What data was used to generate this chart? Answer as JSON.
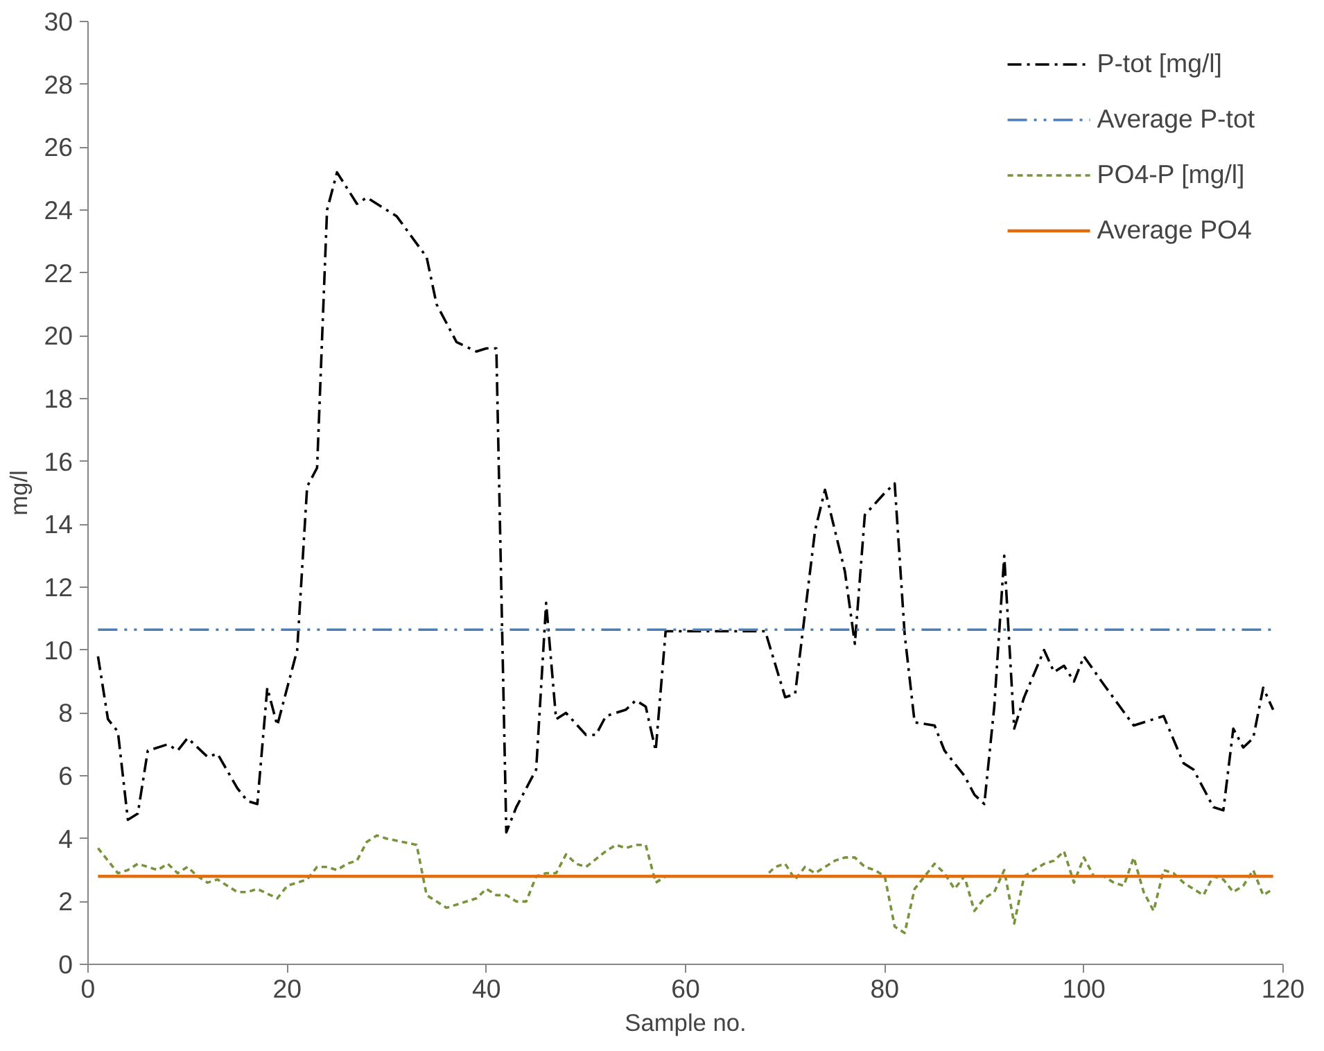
{
  "chart_data": {
    "type": "line",
    "xlabel": "Sample no.",
    "ylabel": "mg/l",
    "xlim": [
      0,
      120
    ],
    "xticks": [
      0,
      20,
      40,
      60,
      80,
      100,
      120
    ],
    "ylim": [
      0,
      30
    ],
    "yticks": [
      0,
      2,
      4,
      6,
      8,
      10,
      12,
      14,
      16,
      18,
      20,
      22,
      24,
      26,
      28,
      30
    ],
    "grid": false,
    "legend": "top right",
    "marker": "none",
    "series": [
      {
        "name": "P-tot [mg/l]",
        "color": "#000000",
        "line_style": "dashdot",
        "x": [
          1,
          2,
          3,
          4,
          5,
          6,
          8,
          9,
          10,
          12,
          13,
          15,
          16,
          17,
          18,
          19,
          21,
          22,
          23,
          24,
          25,
          27,
          28,
          31,
          34,
          35,
          37,
          39,
          40,
          41,
          42,
          43,
          45,
          46,
          47,
          48,
          50,
          51,
          52,
          54,
          55,
          56,
          57,
          58,
          68,
          70,
          71,
          73,
          74,
          76,
          77,
          78,
          80,
          81,
          82,
          83,
          85,
          86,
          88,
          89,
          90,
          91,
          92,
          93,
          94,
          96,
          97,
          98,
          99,
          100,
          102,
          105,
          107,
          108,
          110,
          111,
          113,
          114,
          115,
          116,
          117,
          118,
          119
        ],
        "values": [
          9.8,
          7.8,
          7.4,
          4.6,
          4.8,
          6.8,
          7.0,
          6.8,
          7.2,
          6.6,
          6.7,
          5.6,
          5.2,
          5.1,
          8.8,
          7.6,
          10.0,
          15.2,
          15.8,
          24.0,
          25.2,
          24.2,
          24.4,
          23.8,
          22.5,
          21.0,
          19.8,
          19.5,
          19.6,
          19.6,
          4.2,
          5.0,
          6.2,
          11.5,
          7.8,
          8.0,
          7.3,
          7.3,
          7.9,
          8.1,
          8.4,
          8.2,
          6.8,
          10.6,
          10.6,
          8.5,
          8.6,
          13.8,
          15.1,
          12.5,
          10.2,
          14.3,
          15.0,
          15.3,
          10.5,
          7.7,
          7.6,
          6.8,
          6.0,
          5.4,
          5.1,
          8.2,
          13.0,
          7.5,
          8.5,
          10.0,
          9.3,
          9.5,
          9.0,
          9.8,
          8.9,
          7.6,
          7.8,
          7.9,
          6.4,
          6.2,
          5.0,
          4.9,
          7.5,
          6.9,
          7.2,
          8.8,
          8.1
        ]
      },
      {
        "name": "Average P-tot",
        "color": "#4a7ebb",
        "line_style": "dashdotdot",
        "x": [
          1,
          119
        ],
        "values": [
          10.65,
          10.65
        ]
      },
      {
        "name": "PO4-P [mg/l]",
        "color": "#77933c",
        "line_style": "dashed",
        "x": [
          1,
          2,
          3,
          4,
          5,
          6,
          7,
          8,
          9,
          10,
          11,
          12,
          13,
          14,
          15,
          16,
          17,
          19,
          20,
          22,
          23,
          24,
          25,
          26,
          27,
          28,
          29,
          30,
          33,
          34,
          36,
          38,
          39,
          40,
          41,
          42,
          43,
          44,
          45,
          46,
          47,
          48,
          49,
          50,
          52,
          53,
          54,
          55,
          56,
          57,
          58,
          68,
          69,
          70,
          71,
          72,
          73,
          74,
          75,
          76,
          77,
          78,
          79,
          80,
          81,
          82,
          83,
          84,
          85,
          86,
          87,
          88,
          89,
          90,
          91,
          92,
          93,
          94,
          95,
          96,
          97,
          98,
          99,
          100,
          101,
          102,
          103,
          104,
          105,
          106,
          107,
          108,
          109,
          110,
          111,
          112,
          113,
          114,
          115,
          116,
          117,
          118,
          119
        ],
        "values": [
          3.7,
          3.3,
          2.9,
          3.0,
          3.2,
          3.1,
          3.0,
          3.2,
          2.9,
          3.1,
          2.8,
          2.6,
          2.7,
          2.5,
          2.3,
          2.3,
          2.4,
          2.1,
          2.5,
          2.7,
          3.1,
          3.1,
          3.0,
          3.2,
          3.3,
          3.9,
          4.1,
          4.0,
          3.8,
          2.2,
          1.8,
          2.0,
          2.1,
          2.4,
          2.2,
          2.2,
          2.0,
          2.0,
          2.8,
          2.9,
          2.9,
          3.5,
          3.2,
          3.1,
          3.6,
          3.8,
          3.7,
          3.8,
          3.8,
          2.6,
          2.8,
          2.8,
          3.1,
          3.2,
          2.7,
          3.1,
          2.9,
          3.1,
          3.3,
          3.4,
          3.4,
          3.1,
          3.0,
          2.8,
          1.2,
          1.0,
          2.4,
          2.8,
          3.2,
          2.9,
          2.4,
          2.8,
          1.7,
          2.1,
          2.3,
          3.0,
          1.3,
          2.8,
          3.0,
          3.2,
          3.3,
          3.6,
          2.6,
          3.4,
          2.8,
          2.8,
          2.6,
          2.5,
          3.4,
          2.3,
          1.7,
          3.0,
          2.9,
          2.6,
          2.4,
          2.2,
          2.8,
          2.7,
          2.3,
          2.5,
          3.0,
          2.2,
          2.4
        ]
      },
      {
        "name": "Average PO4",
        "color": "#e46c0a",
        "line_style": "solid",
        "x": [
          1,
          119
        ],
        "values": [
          2.8,
          2.8
        ]
      }
    ]
  }
}
